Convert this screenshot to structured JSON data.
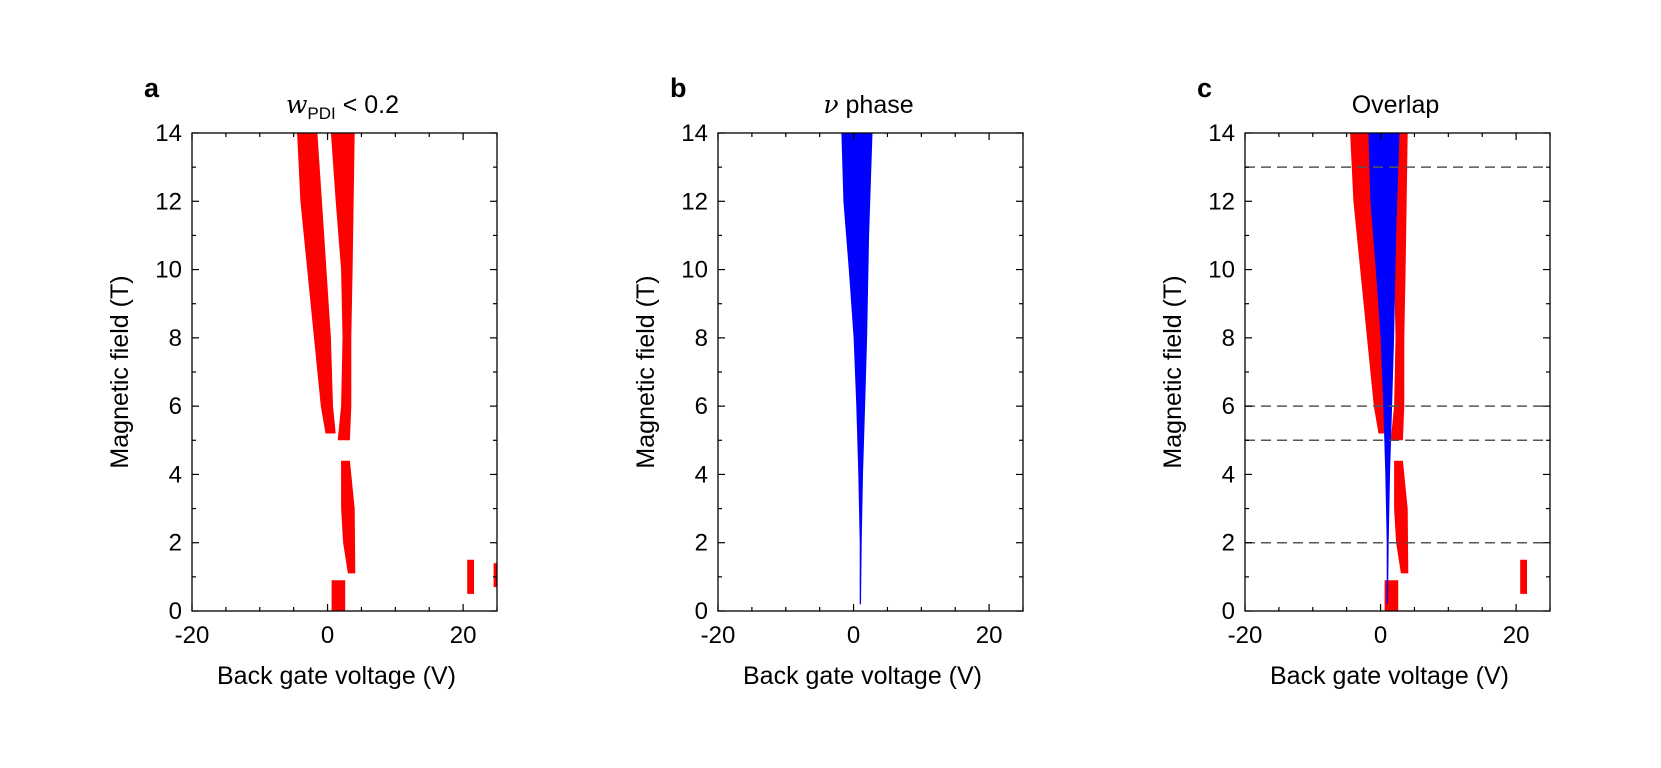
{
  "colors": {
    "red_region": "#ff0000",
    "blue_region": "#0000ff",
    "axis": "#000000",
    "dashed_line": "#555555"
  },
  "chart_data": [
    {
      "type": "heatmap",
      "panel_label": "a",
      "title": {
        "var": "w",
        "sub": "PDI",
        "rest": " < 0.2"
      },
      "xlabel": "Back gate voltage (V)",
      "ylabel": "Magnetic field (T)",
      "xlim": [
        -20,
        25
      ],
      "ylim": [
        0,
        14
      ],
      "xticks": [
        -20,
        0,
        20
      ],
      "yticks": [
        0,
        2,
        4,
        6,
        8,
        10,
        12,
        14
      ],
      "regions": [
        {
          "name": "left-branch",
          "color": "red",
          "boundary": [
            [
              -4.5,
              14
            ],
            [
              -1.5,
              14
            ],
            [
              -0.5,
              11
            ],
            [
              0.5,
              8
            ],
            [
              0.8,
              6
            ],
            [
              1.2,
              5.2
            ],
            [
              -0.3,
              5.2
            ],
            [
              -1,
              6
            ],
            [
              -2,
              8
            ],
            [
              -3,
              10
            ],
            [
              -4,
              12
            ]
          ]
        },
        {
          "name": "right-branch-upper",
          "color": "red",
          "boundary": [
            [
              0.5,
              14
            ],
            [
              4,
              14
            ],
            [
              3.7,
              10
            ],
            [
              3.5,
              8
            ],
            [
              3.5,
              6
            ],
            [
              3.3,
              5
            ],
            [
              1.5,
              5
            ],
            [
              2,
              6
            ],
            [
              2.2,
              8
            ],
            [
              2,
              10
            ],
            [
              1.2,
              12
            ]
          ]
        },
        {
          "name": "right-branch-lower",
          "color": "red",
          "boundary": [
            [
              2,
              4.4
            ],
            [
              3.3,
              4.4
            ],
            [
              4,
              3
            ],
            [
              4.1,
              1.1
            ],
            [
              3,
              1.1
            ],
            [
              2.3,
              2
            ],
            [
              2,
              3
            ]
          ]
        },
        {
          "name": "bottom-patch",
          "color": "red",
          "boundary": [
            [
              0.6,
              0.9
            ],
            [
              2.6,
              0.9
            ],
            [
              2.6,
              0
            ],
            [
              0.6,
              0
            ]
          ]
        },
        {
          "name": "far-patch-1",
          "color": "red",
          "boundary": [
            [
              20.6,
              1.5
            ],
            [
              21.6,
              1.5
            ],
            [
              21.6,
              0.5
            ],
            [
              20.6,
              0.5
            ]
          ]
        },
        {
          "name": "far-patch-2",
          "color": "red",
          "boundary": [
            [
              24.5,
              1.4
            ],
            [
              25,
              1.4
            ],
            [
              25,
              0.7
            ],
            [
              24.5,
              0.7
            ]
          ]
        }
      ]
    },
    {
      "type": "heatmap",
      "panel_label": "b",
      "title": {
        "var": "ν",
        "sub": "",
        "rest": " phase"
      },
      "xlabel": "Back gate voltage (V)",
      "ylabel": "Magnetic field (T)",
      "xlim": [
        -20,
        25
      ],
      "ylim": [
        0,
        14
      ],
      "xticks": [
        -20,
        0,
        20
      ],
      "yticks": [
        0,
        2,
        4,
        6,
        8,
        10,
        12,
        14
      ],
      "regions": [
        {
          "name": "nu-phase",
          "color": "blue",
          "boundary": [
            [
              -1.8,
              14
            ],
            [
              2.8,
              14
            ],
            [
              2.3,
              11
            ],
            [
              2,
              8
            ],
            [
              1.7,
              6
            ],
            [
              1.4,
              4
            ],
            [
              1.2,
              2
            ],
            [
              1.1,
              0.2
            ],
            [
              0.9,
              0.2
            ],
            [
              0.9,
              2
            ],
            [
              0.7,
              4
            ],
            [
              0.4,
              6
            ],
            [
              0,
              8
            ],
            [
              -0.7,
              10
            ],
            [
              -1.5,
              12
            ]
          ]
        }
      ]
    },
    {
      "type": "heatmap",
      "panel_label": "c",
      "title": {
        "var": "",
        "sub": "",
        "rest": "Overlap"
      },
      "xlabel": "Back gate voltage (V)",
      "ylabel": "Magnetic field (T)",
      "xlim": [
        -20,
        25
      ],
      "ylim": [
        0,
        14
      ],
      "xticks": [
        -20,
        0,
        20
      ],
      "yticks": [
        0,
        2,
        4,
        6,
        8,
        10,
        12,
        14
      ],
      "regions": [
        {
          "name": "left-branch",
          "color": "red",
          "boundary": [
            [
              -4.5,
              14
            ],
            [
              -1.5,
              14
            ],
            [
              -0.5,
              11
            ],
            [
              0.5,
              8
            ],
            [
              0.8,
              6
            ],
            [
              1.2,
              5.2
            ],
            [
              -0.3,
              5.2
            ],
            [
              -1,
              6
            ],
            [
              -2,
              8
            ],
            [
              -3,
              10
            ],
            [
              -4,
              12
            ]
          ]
        },
        {
          "name": "right-branch-upper",
          "color": "red",
          "boundary": [
            [
              0.5,
              14
            ],
            [
              4,
              14
            ],
            [
              3.7,
              10
            ],
            [
              3.5,
              8
            ],
            [
              3.5,
              6
            ],
            [
              3.3,
              5
            ],
            [
              1.5,
              5
            ],
            [
              2,
              6
            ],
            [
              2.2,
              8
            ],
            [
              2,
              10
            ],
            [
              1.2,
              12
            ]
          ]
        },
        {
          "name": "right-branch-lower",
          "color": "red",
          "boundary": [
            [
              2,
              4.4
            ],
            [
              3.3,
              4.4
            ],
            [
              4,
              3
            ],
            [
              4.1,
              1.1
            ],
            [
              3,
              1.1
            ],
            [
              2.3,
              2
            ],
            [
              2,
              3
            ]
          ]
        },
        {
          "name": "bottom-patch",
          "color": "red",
          "boundary": [
            [
              0.6,
              0.9
            ],
            [
              2.6,
              0.9
            ],
            [
              2.6,
              0
            ],
            [
              0.6,
              0
            ]
          ]
        },
        {
          "name": "far-patch-1",
          "color": "red",
          "boundary": [
            [
              20.6,
              1.5
            ],
            [
              21.6,
              1.5
            ],
            [
              21.6,
              0.5
            ],
            [
              20.6,
              0.5
            ]
          ]
        },
        {
          "name": "nu-phase",
          "color": "blue",
          "boundary": [
            [
              -1.8,
              14
            ],
            [
              2.8,
              14
            ],
            [
              2.3,
              11
            ],
            [
              2,
              8
            ],
            [
              1.7,
              6
            ],
            [
              1.4,
              4
            ],
            [
              1.2,
              2
            ],
            [
              1.1,
              0.2
            ],
            [
              0.9,
              0.2
            ],
            [
              0.9,
              2
            ],
            [
              0.7,
              4
            ],
            [
              0.4,
              6
            ],
            [
              0,
              8
            ],
            [
              -0.7,
              10
            ],
            [
              -1.5,
              12
            ]
          ]
        }
      ],
      "hlines": [
        13,
        6,
        5,
        2
      ]
    }
  ]
}
